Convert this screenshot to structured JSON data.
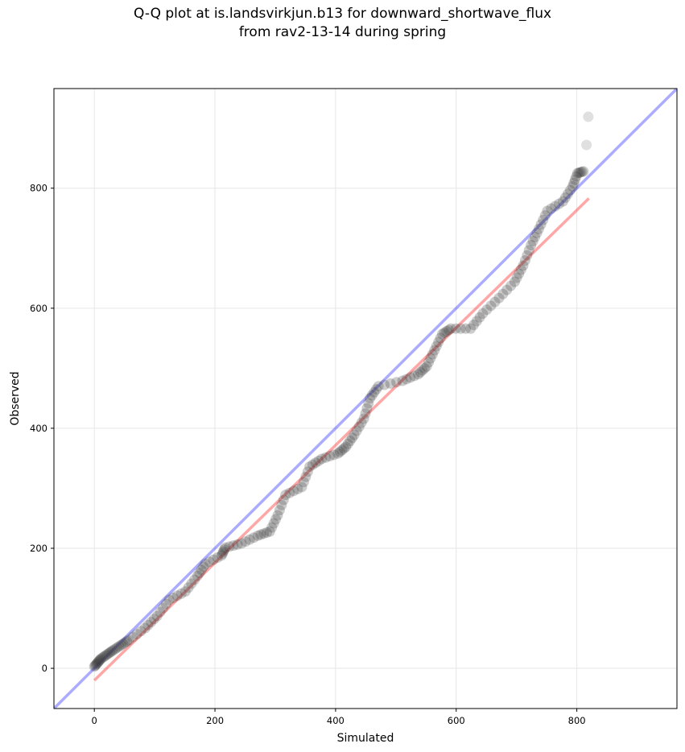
{
  "chart_data": {
    "type": "scatter",
    "title_line1": "Q-Q plot at is.landsvirkjun.b13 for downward_shortwave_flux",
    "title_line2": "from rav2-13-14 during spring",
    "xlabel": "Simulated",
    "ylabel": "Observed",
    "xlim": [
      -67,
      966
    ],
    "ylim": [
      -67,
      966
    ],
    "xticks": [
      0,
      200,
      400,
      600,
      800
    ],
    "yticks": [
      0,
      200,
      400,
      600,
      800
    ],
    "grid": true,
    "colors": {
      "points": "#333333",
      "identity": "#0000ff",
      "fit": "#ff0000",
      "grid": "#e6e6e6"
    },
    "identity_line": {
      "label": "y = x"
    },
    "fit_line": {
      "x": [
        0,
        820
      ],
      "y": [
        -20,
        783
      ]
    },
    "quantiles": {
      "simulated": [
        0,
        11,
        31,
        57,
        84,
        104,
        124,
        151,
        171,
        184,
        211,
        217,
        244,
        271,
        291,
        304,
        317,
        344,
        357,
        377,
        404,
        417,
        431,
        447,
        457,
        471,
        511,
        537,
        551,
        564,
        577,
        591,
        624,
        644,
        671,
        697,
        711,
        724,
        737,
        751,
        777,
        793,
        801,
        811,
        816,
        819
      ],
      "observed": [
        3,
        16,
        30,
        47,
        67,
        87,
        114,
        128,
        154,
        174,
        188,
        201,
        208,
        221,
        228,
        255,
        289,
        302,
        336,
        349,
        358,
        369,
        389,
        416,
        450,
        470,
        479,
        490,
        503,
        530,
        557,
        566,
        566,
        591,
        617,
        644,
        671,
        705,
        732,
        762,
        778,
        803,
        825,
        828,
        872,
        919
      ]
    }
  }
}
